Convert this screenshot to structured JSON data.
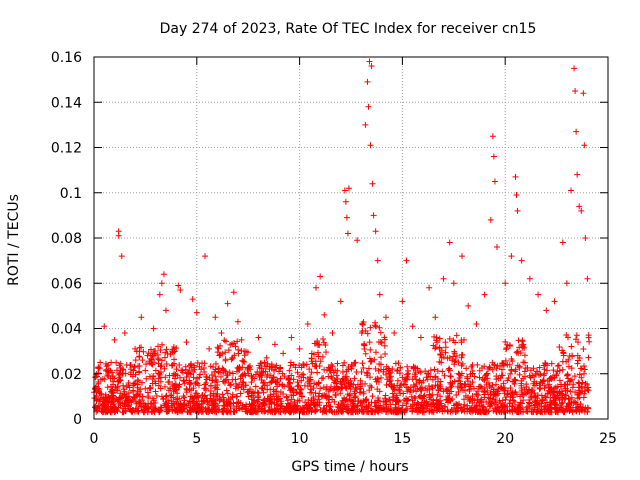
{
  "chart_data": {
    "type": "scatter",
    "title": "Day 274 of 2023, Rate Of TEC Index for receiver cn15",
    "xlabel": "GPS time / hours",
    "ylabel": "ROTI / TECUs",
    "xlim": [
      0,
      25
    ],
    "ylim": [
      0,
      0.16
    ],
    "x_ticks": [
      0,
      5,
      10,
      15,
      20,
      25
    ],
    "y_ticks": [
      0,
      0.02,
      0.04,
      0.06,
      0.08,
      0.1,
      0.12,
      0.14,
      0.16
    ],
    "x_tick_labels": [
      "0",
      "5",
      "10",
      "15",
      "20",
      "25"
    ],
    "y_tick_labels": [
      "0",
      "0.02",
      "0.04",
      "0.06",
      "0.08",
      "0.1",
      "0.12",
      "0.14",
      "0.16"
    ],
    "grid": true,
    "marker": "+",
    "series_color": "#ff0000",
    "background_points_note": "",
    "points": [
      [
        0.1,
        0.012
      ],
      [
        0.3,
        0.025
      ],
      [
        0.5,
        0.041
      ],
      [
        0.8,
        0.018
      ],
      [
        1.0,
        0.035
      ],
      [
        1.2,
        0.083
      ],
      [
        1.2,
        0.081
      ],
      [
        1.35,
        0.072
      ],
      [
        1.5,
        0.038
      ],
      [
        1.8,
        0.022
      ],
      [
        2.0,
        0.031
      ],
      [
        2.3,
        0.045
      ],
      [
        2.6,
        0.028
      ],
      [
        2.9,
        0.04
      ],
      [
        3.2,
        0.055
      ],
      [
        3.3,
        0.06
      ],
      [
        3.4,
        0.064
      ],
      [
        3.5,
        0.048
      ],
      [
        3.8,
        0.03
      ],
      [
        4.1,
        0.059
      ],
      [
        4.2,
        0.057
      ],
      [
        4.5,
        0.034
      ],
      [
        4.8,
        0.053
      ],
      [
        5.0,
        0.047
      ],
      [
        5.4,
        0.072
      ],
      [
        5.6,
        0.031
      ],
      [
        5.9,
        0.045
      ],
      [
        6.2,
        0.038
      ],
      [
        6.5,
        0.051
      ],
      [
        6.8,
        0.056
      ],
      [
        7.0,
        0.043
      ],
      [
        7.3,
        0.03
      ],
      [
        7.6,
        0.022
      ],
      [
        8.0,
        0.036
      ],
      [
        8.4,
        0.027
      ],
      [
        8.8,
        0.033
      ],
      [
        9.2,
        0.029
      ],
      [
        9.6,
        0.036
      ],
      [
        10.0,
        0.031
      ],
      [
        10.4,
        0.042
      ],
      [
        10.8,
        0.058
      ],
      [
        11.0,
        0.063
      ],
      [
        11.2,
        0.046
      ],
      [
        11.6,
        0.038
      ],
      [
        12.0,
        0.052
      ],
      [
        12.2,
        0.101
      ],
      [
        12.25,
        0.096
      ],
      [
        12.3,
        0.089
      ],
      [
        12.35,
        0.082
      ],
      [
        12.4,
        0.102
      ],
      [
        12.8,
        0.079
      ],
      [
        13.2,
        0.13
      ],
      [
        13.3,
        0.149
      ],
      [
        13.35,
        0.138
      ],
      [
        13.4,
        0.158
      ],
      [
        13.45,
        0.121
      ],
      [
        13.5,
        0.156
      ],
      [
        13.55,
        0.104
      ],
      [
        13.6,
        0.09
      ],
      [
        13.7,
        0.083
      ],
      [
        13.8,
        0.07
      ],
      [
        13.9,
        0.055
      ],
      [
        14.2,
        0.045
      ],
      [
        14.6,
        0.038
      ],
      [
        15.0,
        0.052
      ],
      [
        15.2,
        0.07
      ],
      [
        15.5,
        0.041
      ],
      [
        15.9,
        0.036
      ],
      [
        16.3,
        0.058
      ],
      [
        16.6,
        0.045
      ],
      [
        17.0,
        0.062
      ],
      [
        17.3,
        0.078
      ],
      [
        17.5,
        0.06
      ],
      [
        17.9,
        0.072
      ],
      [
        18.2,
        0.05
      ],
      [
        18.6,
        0.042
      ],
      [
        19.0,
        0.055
      ],
      [
        19.3,
        0.088
      ],
      [
        19.4,
        0.125
      ],
      [
        19.45,
        0.116
      ],
      [
        19.5,
        0.105
      ],
      [
        19.6,
        0.076
      ],
      [
        20.0,
        0.06
      ],
      [
        20.3,
        0.072
      ],
      [
        20.5,
        0.107
      ],
      [
        20.55,
        0.099
      ],
      [
        20.6,
        0.092
      ],
      [
        20.8,
        0.07
      ],
      [
        21.2,
        0.062
      ],
      [
        21.6,
        0.055
      ],
      [
        22.0,
        0.048
      ],
      [
        22.4,
        0.052
      ],
      [
        22.8,
        0.078
      ],
      [
        23.0,
        0.06
      ],
      [
        23.2,
        0.101
      ],
      [
        23.35,
        0.155
      ],
      [
        23.4,
        0.145
      ],
      [
        23.45,
        0.127
      ],
      [
        23.5,
        0.108
      ],
      [
        23.6,
        0.094
      ],
      [
        23.7,
        0.092
      ],
      [
        23.8,
        0.144
      ],
      [
        23.85,
        0.121
      ],
      [
        23.9,
        0.08
      ],
      [
        24.0,
        0.062
      ]
    ]
  }
}
